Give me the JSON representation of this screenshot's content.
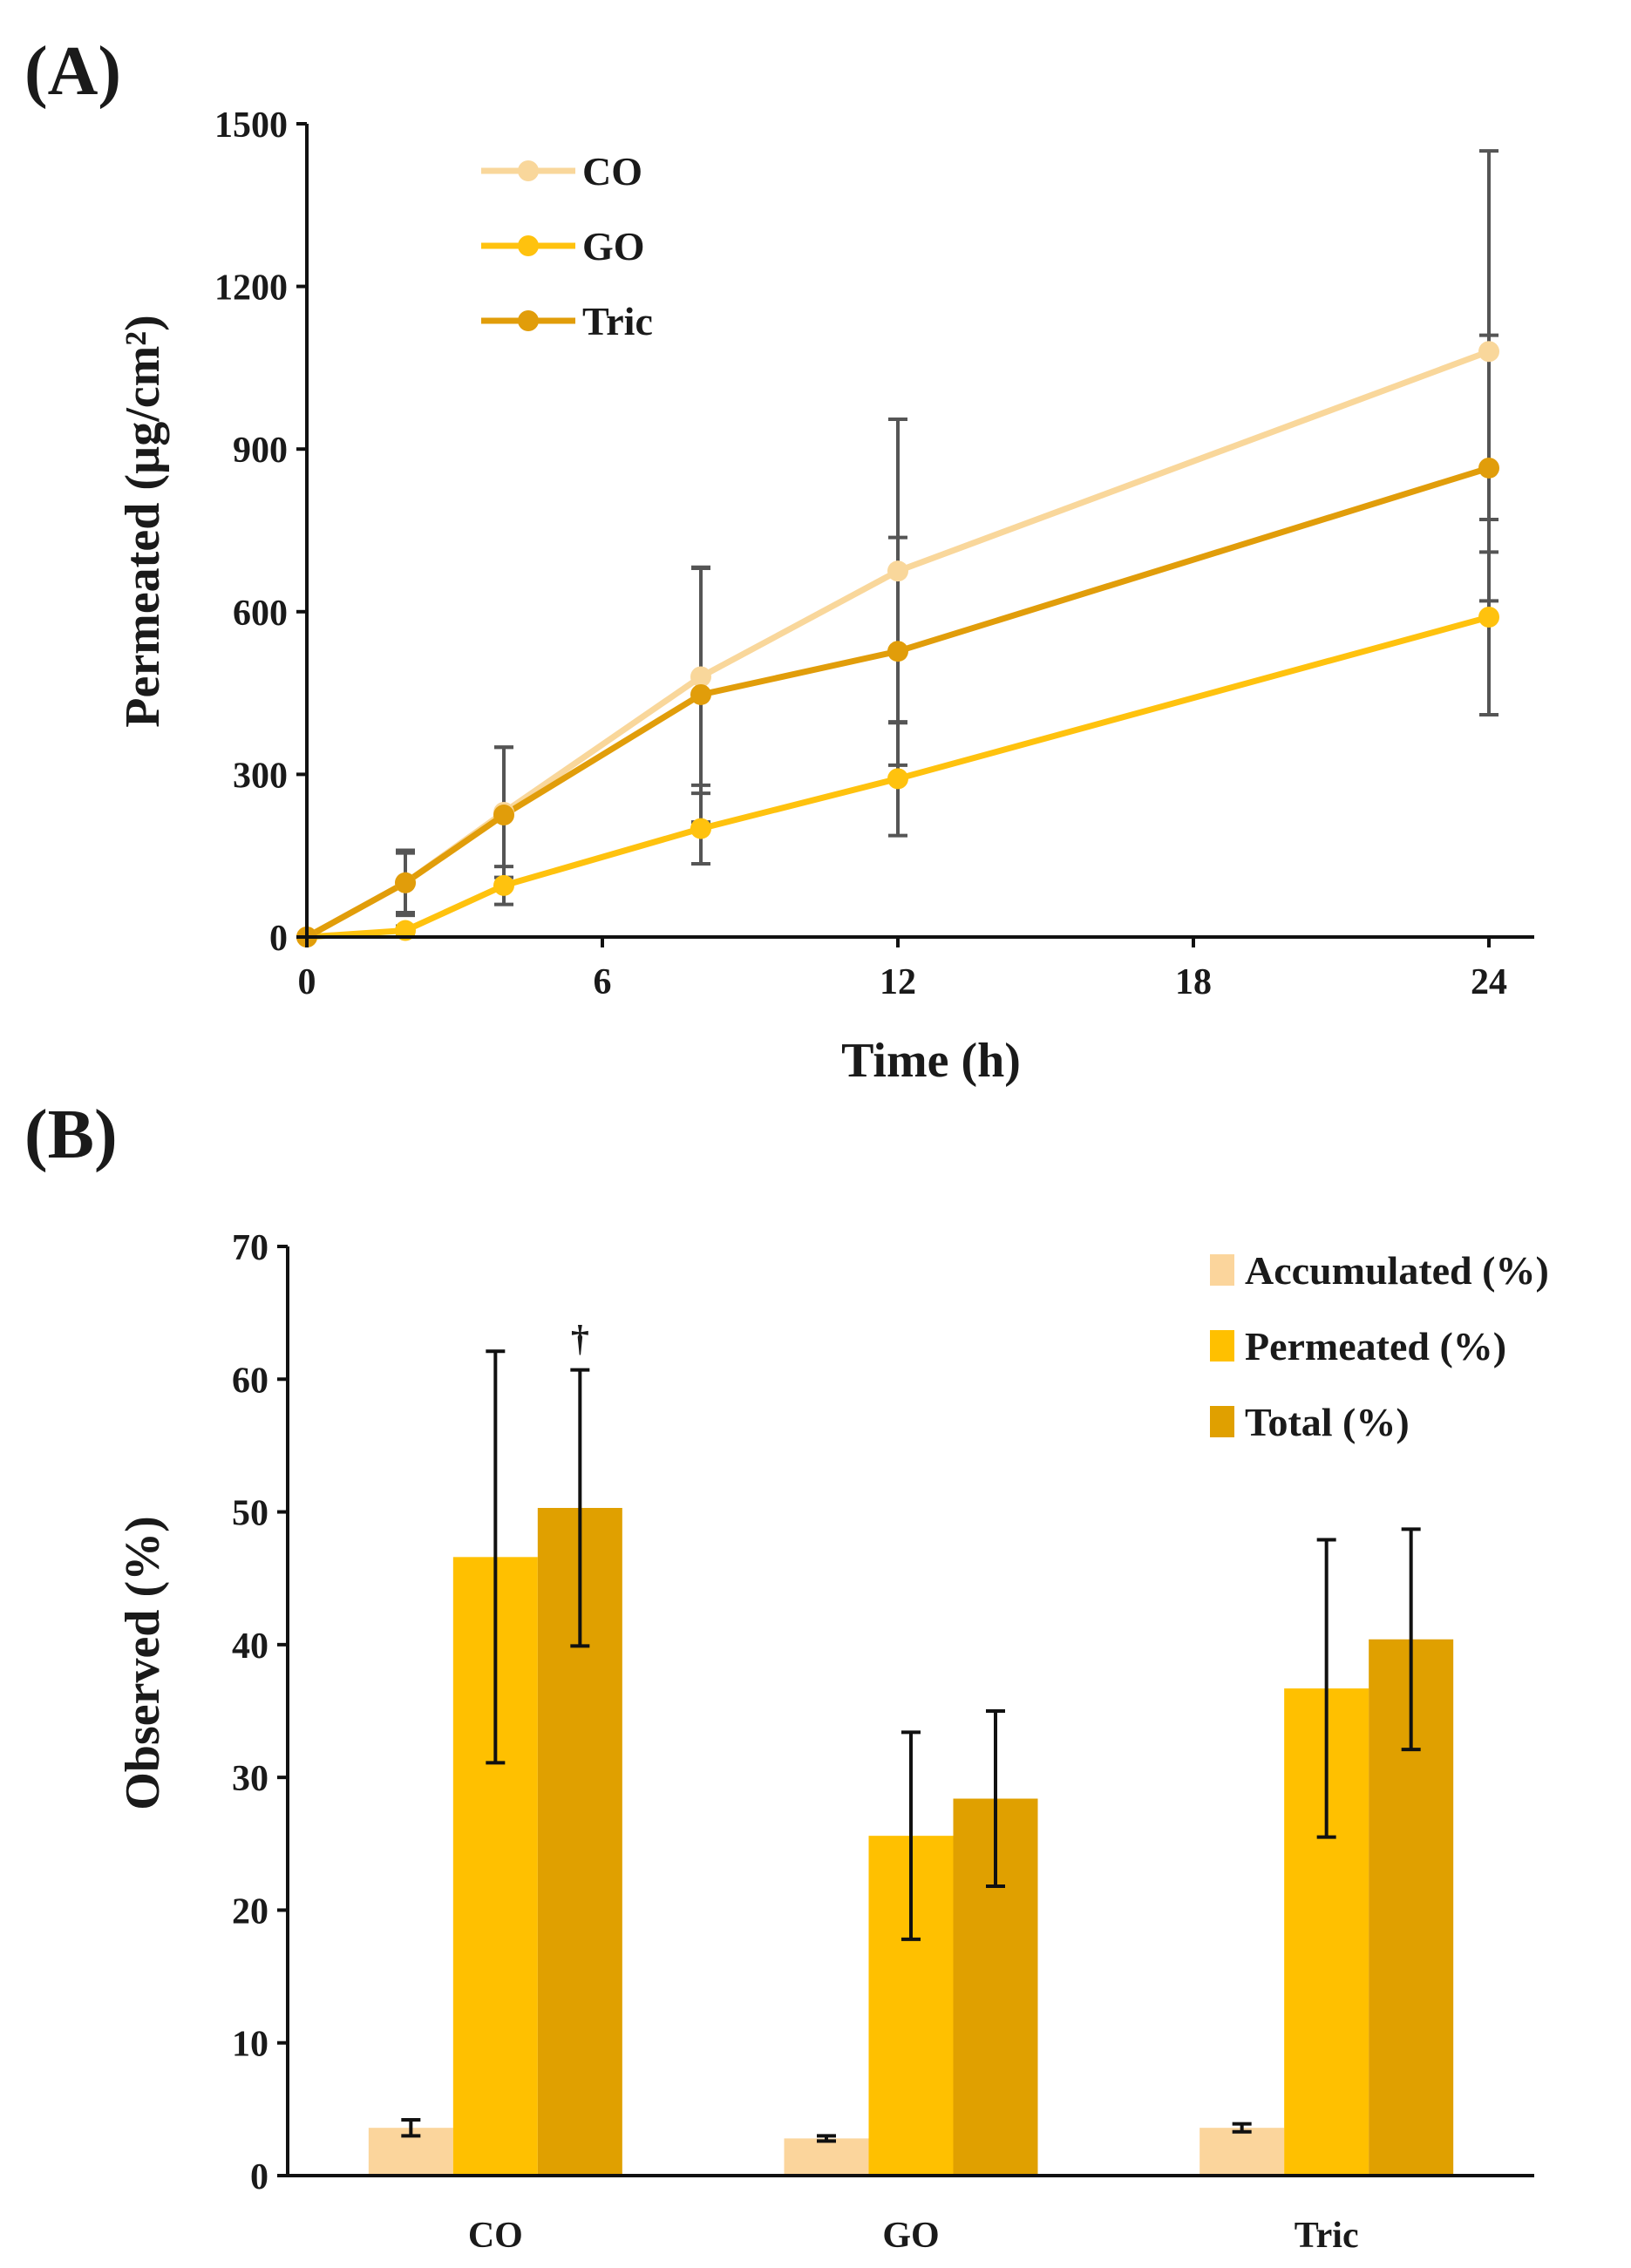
{
  "chart_data": [
    {
      "type": "line",
      "panel_label": "(A)",
      "title": "",
      "xlabel": "Time (h)",
      "ylabel": "Permeated (µg/cm²)",
      "xlim": [
        0,
        25
      ],
      "ylim": [
        0,
        1500
      ],
      "xticks": [
        0,
        6,
        12,
        18,
        24
      ],
      "yticks": [
        0,
        300,
        600,
        900,
        1200,
        1500
      ],
      "legend_position": "top-left",
      "x": [
        0,
        2,
        4,
        8,
        12,
        24
      ],
      "series": [
        {
          "name": "CO",
          "color": "#F9D79B",
          "values": [
            0,
            100,
            230,
            480,
            675,
            1080
          ],
          "errors": [
            0,
            60,
            120,
            200,
            280,
            370
          ]
        },
        {
          "name": "GO",
          "color": "#FFC20E",
          "values": [
            0,
            12,
            95,
            200,
            292,
            590
          ],
          "errors": [
            0,
            8,
            35,
            65,
            105,
            180
          ]
        },
        {
          "name": "Tric",
          "color": "#E19D0A",
          "values": [
            0,
            100,
            225,
            447,
            527,
            865
          ],
          "errors": [
            0,
            55,
            125,
            235,
            210,
            245
          ]
        }
      ]
    },
    {
      "type": "bar",
      "panel_label": "(B)",
      "title": "",
      "xlabel": "",
      "ylabel": "Observed (%)",
      "ylim": [
        0,
        70
      ],
      "yticks": [
        0,
        10,
        20,
        30,
        40,
        50,
        60,
        70
      ],
      "legend_position": "top-right",
      "categories": [
        "CO",
        "GO",
        "Tric"
      ],
      "annotation": {
        "text": "†",
        "category": "CO",
        "series": "Total (%)"
      },
      "series": [
        {
          "name": "Accumulated (%)",
          "color": "#FBD59C",
          "values": [
            3.6,
            2.8,
            3.6
          ],
          "errors": [
            0.6,
            0.2,
            0.3
          ]
        },
        {
          "name": "Permeated (%)",
          "color": "#FFC000",
          "values": [
            46.6,
            25.6,
            36.7
          ],
          "errors": [
            15.5,
            7.8,
            11.2
          ]
        },
        {
          "name": "Total (%)",
          "color": "#E0A000",
          "values": [
            50.3,
            28.4,
            40.4
          ],
          "errors": [
            10.4,
            6.6,
            8.3
          ]
        }
      ]
    }
  ]
}
